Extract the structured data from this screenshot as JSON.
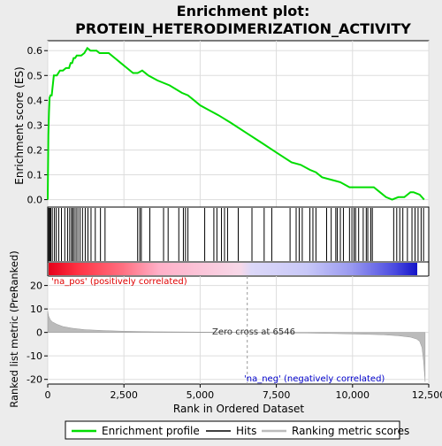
{
  "chart_data": {
    "type": "line",
    "title_line1": "Enrichment plot:",
    "title_line2": "PROTEIN_HETERODIMERIZATION_ACTIVITY",
    "xlabel": "Rank in Ordered Dataset",
    "ylabel_top": "Enrichment score (ES)",
    "ylabel_bottom": "Ranked list metric (PreRanked)",
    "xlim": [
      0,
      12500
    ],
    "x_ticks": [
      0,
      2500,
      5000,
      7500,
      10000,
      12500
    ],
    "x_tick_labels": [
      "0",
      "2,500",
      "5,000",
      "7,500",
      "10,000",
      "12,500"
    ],
    "es_ylim": [
      -0.03,
      0.64
    ],
    "es_ticks": [
      0.0,
      0.1,
      0.2,
      0.3,
      0.4,
      0.5,
      0.6
    ],
    "es_tick_labels": [
      "0.0",
      "0.1",
      "0.2",
      "0.3",
      "0.4",
      "0.5",
      "0.6"
    ],
    "metric_ylim": [
      -22,
      24
    ],
    "metric_ticks": [
      -20,
      -10,
      0,
      10,
      20
    ],
    "metric_tick_labels": [
      "-20",
      "-10",
      "0",
      "10",
      "20"
    ],
    "zero_cross_rank": 6546,
    "annotations": {
      "pos_label": "'na_pos' (positively correlated)",
      "neg_label": "'na_neg' (negatively correlated)",
      "zero_cross_label": "Zero cross at 6546"
    },
    "legend": [
      {
        "label": "Enrichment profile",
        "color": "#00dd00"
      },
      {
        "label": "Hits",
        "color": "#000000"
      },
      {
        "label": "Ranking metric scores",
        "color": "#bbbbbb"
      }
    ],
    "enrichment_profile": {
      "x": [
        0,
        20,
        40,
        60,
        90,
        130,
        200,
        300,
        400,
        500,
        600,
        700,
        750,
        800,
        850,
        900,
        950,
        1000,
        1100,
        1200,
        1300,
        1400,
        1500,
        1600,
        1700,
        1800,
        1900,
        2000,
        2200,
        2400,
        2600,
        2800,
        2950,
        3100,
        3300,
        3600,
        4000,
        4400,
        4600,
        4800,
        5000,
        5300,
        5600,
        6000,
        6500,
        7000,
        7500,
        8000,
        8300,
        8600,
        8800,
        9000,
        9300,
        9600,
        9900,
        10100,
        10300,
        10500,
        10700,
        10900,
        11100,
        11300,
        11500,
        11700,
        11900,
        12000,
        12200,
        12350
      ],
      "y": [
        0.0,
        0.26,
        0.35,
        0.41,
        0.42,
        0.42,
        0.5,
        0.5,
        0.52,
        0.52,
        0.53,
        0.53,
        0.55,
        0.55,
        0.57,
        0.57,
        0.58,
        0.58,
        0.58,
        0.59,
        0.61,
        0.6,
        0.6,
        0.6,
        0.59,
        0.59,
        0.59,
        0.59,
        0.57,
        0.55,
        0.53,
        0.51,
        0.51,
        0.52,
        0.5,
        0.48,
        0.46,
        0.43,
        0.42,
        0.4,
        0.38,
        0.36,
        0.34,
        0.31,
        0.27,
        0.23,
        0.19,
        0.15,
        0.14,
        0.12,
        0.11,
        0.09,
        0.08,
        0.07,
        0.05,
        0.05,
        0.05,
        0.05,
        0.05,
        0.03,
        0.01,
        0.0,
        0.01,
        0.01,
        0.03,
        0.03,
        0.02,
        0.0
      ]
    },
    "hits": [
      10,
      40,
      70,
      100,
      150,
      220,
      280,
      360,
      450,
      560,
      650,
      720,
      780,
      820,
      870,
      930,
      990,
      1060,
      1140,
      1230,
      1320,
      1420,
      1560,
      1730,
      1880,
      2950,
      3020,
      3070,
      3350,
      3800,
      3950,
      4300,
      4450,
      4520,
      4600,
      5150,
      5450,
      5550,
      5700,
      5800,
      5900,
      6250,
      6700,
      7100,
      7350,
      7950,
      8150,
      8250,
      8350,
      8600,
      8700,
      8800,
      9150,
      9300,
      9450,
      9500,
      9600,
      9700,
      9900,
      9980,
      10050,
      10100,
      10200,
      10350,
      10450,
      10500,
      10600,
      10650,
      11350,
      11450,
      11550,
      11650,
      11800,
      11950,
      12050,
      12150,
      12250,
      12330
    ],
    "metric_profile": {
      "x": [
        0,
        30,
        80,
        150,
        300,
        500,
        800,
        1200,
        1800,
        2500,
        3500,
        4500,
        5500,
        6546,
        7500,
        8500,
        9500,
        10500,
        11000,
        11500,
        11900,
        12100,
        12200,
        12280,
        12330,
        12380
      ],
      "y": [
        9.0,
        7.0,
        5.5,
        4.5,
        3.5,
        2.5,
        1.8,
        1.2,
        0.8,
        0.5,
        0.3,
        0.2,
        0.1,
        0.0,
        -0.2,
        -0.3,
        -0.5,
        -0.8,
        -1.0,
        -1.4,
        -2.0,
        -2.8,
        -3.8,
        -6.5,
        -12.0,
        -21.0
      ]
    }
  }
}
